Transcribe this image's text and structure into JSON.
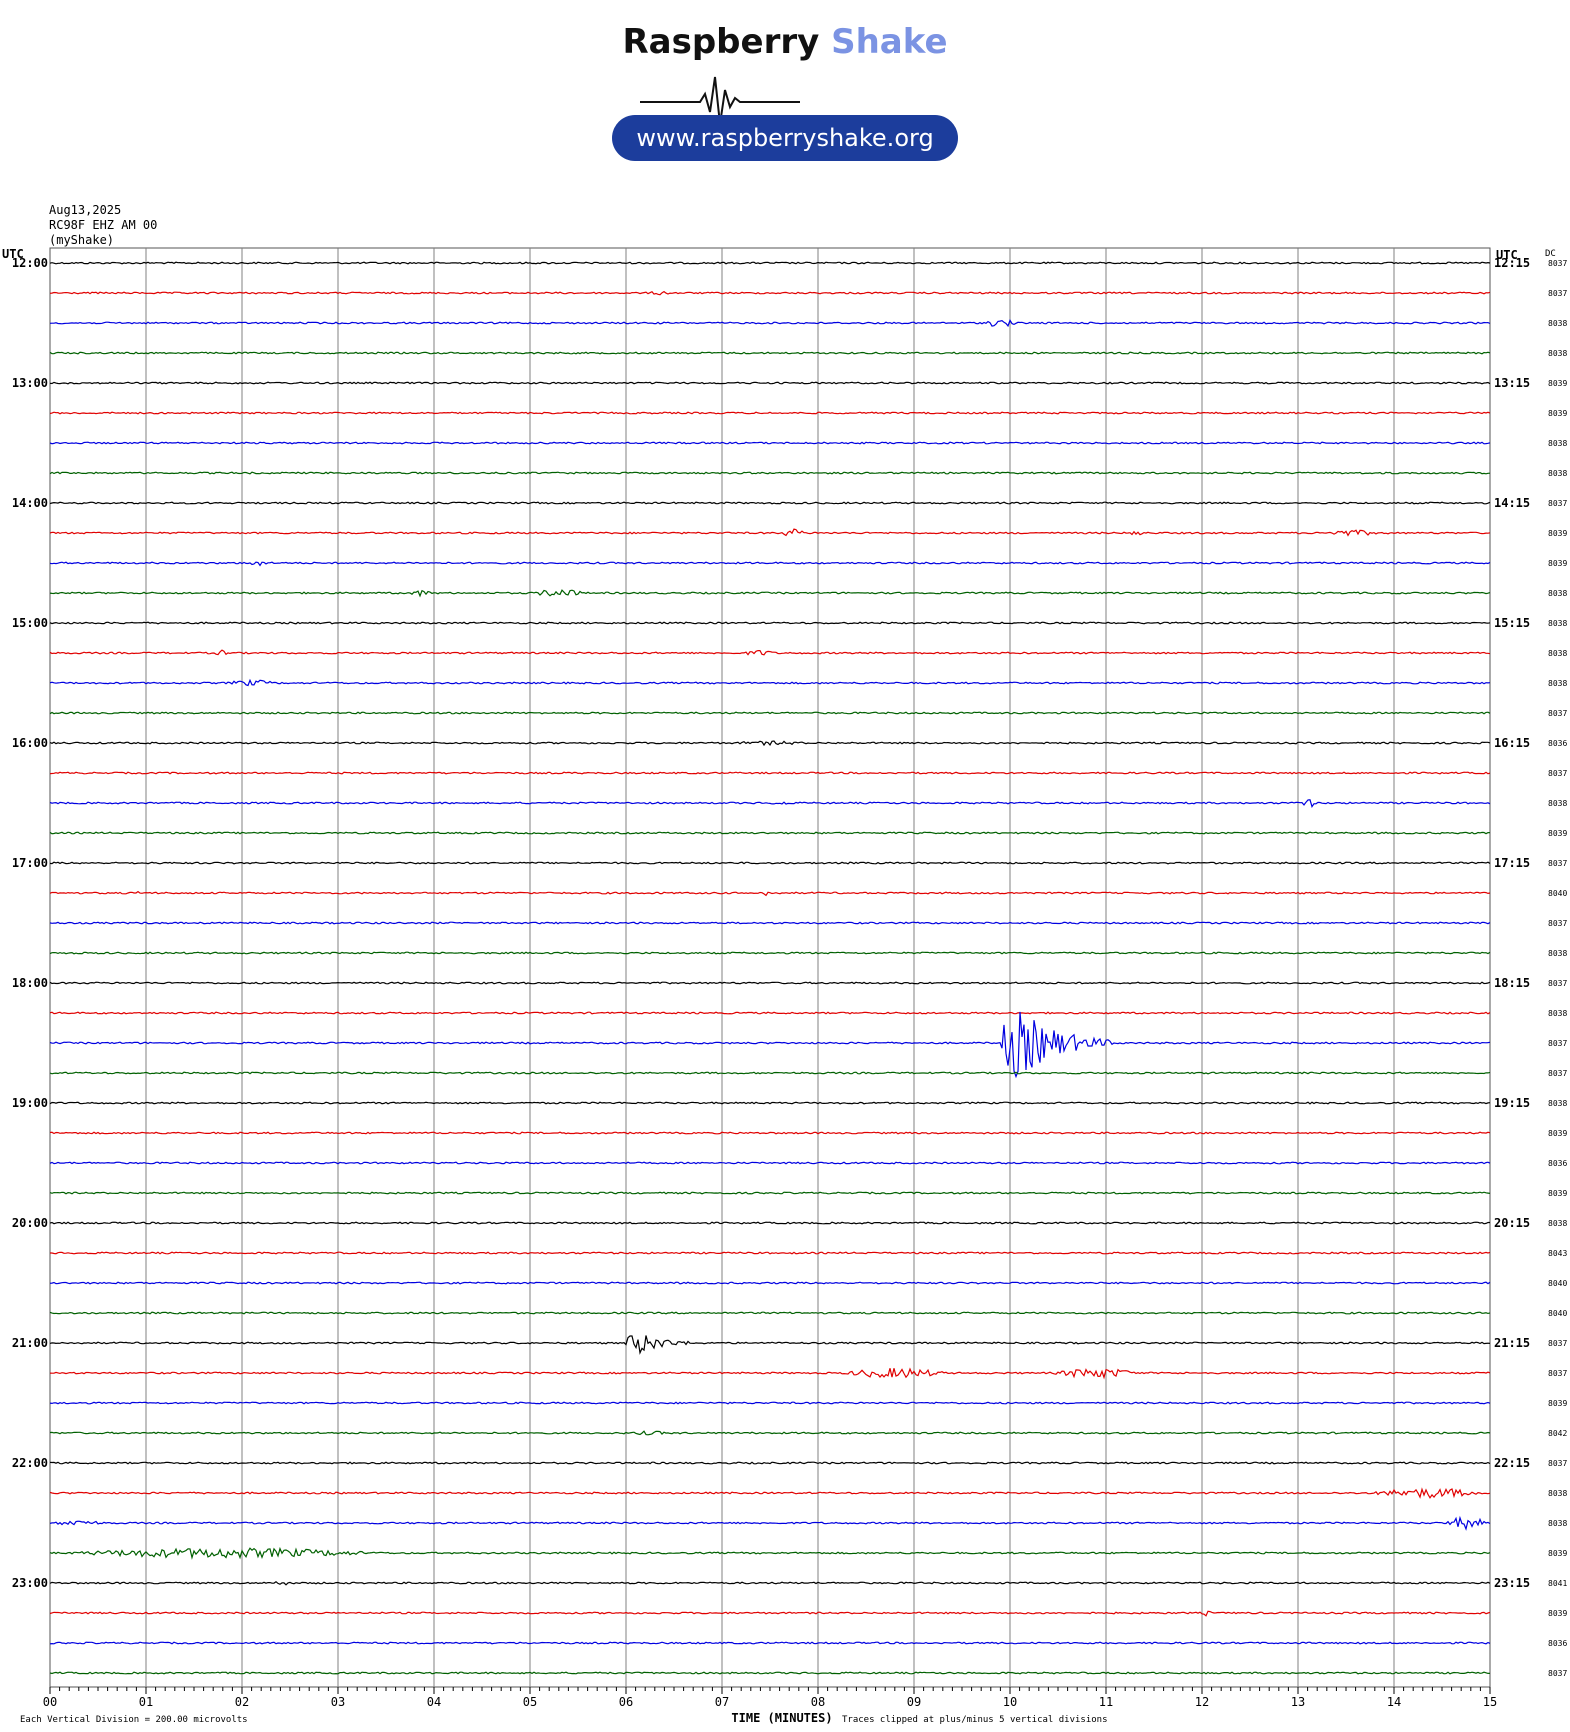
{
  "logo": {
    "brand_dark": "Raspberry",
    "brand_light": "Shake",
    "url": "www.raspberryshake.org"
  },
  "header": {
    "date": "Aug13,2025",
    "station": "RC98F EHZ AM 00",
    "network": "(myShake)"
  },
  "colors": {
    "trace_cycle": [
      "#000000",
      "#e00000",
      "#0000e0",
      "#006000"
    ],
    "grid": "#808080",
    "brand_accent": "#1c3d9c"
  },
  "chart_data": {
    "type": "line",
    "title": "",
    "left_axis_title": "UTC",
    "right_axis_title": "UTC",
    "dc_title": "DC",
    "xlabel": "TIME (MINUTES)",
    "xlim": [
      0,
      15
    ],
    "x_ticks": [
      "00",
      "01",
      "02",
      "03",
      "04",
      "05",
      "06",
      "07",
      "08",
      "09",
      "10",
      "11",
      "12",
      "13",
      "14",
      "15"
    ],
    "footer_left": "Each Vertical Division =  200.00 microvolts",
    "footer_right": "Traces clipped at plus/minus 5 vertical divisions",
    "left_hour_labels": [
      "12:00",
      "13:00",
      "14:00",
      "15:00",
      "16:00",
      "17:00",
      "18:00",
      "19:00",
      "20:00",
      "21:00",
      "22:00",
      "23:00"
    ],
    "right_hour_labels": [
      "12:15",
      "13:15",
      "14:15",
      "15:15",
      "16:15",
      "17:15",
      "18:15",
      "19:15",
      "20:15",
      "21:15",
      "22:15",
      "23:15"
    ],
    "dc_offsets": [
      "8037",
      "8037",
      "8038",
      "8038",
      "8039",
      "8039",
      "8038",
      "8038",
      "8037",
      "8039",
      "8039",
      "8038",
      "8038",
      "8038",
      "8038",
      "8037",
      "8036",
      "8037",
      "8038",
      "8039",
      "8037",
      "8040",
      "8037",
      "8038",
      "8037",
      "8038",
      "8037",
      "8037",
      "8038",
      "8039",
      "8036",
      "8039",
      "8038",
      "8043",
      "8040",
      "8040",
      "8037",
      "8037",
      "8039",
      "8042",
      "8037",
      "8038",
      "8038",
      "8039",
      "8041",
      "8039",
      "8036",
      "8037"
    ],
    "events": [
      {
        "row": 1,
        "minute": 6.2,
        "duration": 0.3,
        "amplitude": 2
      },
      {
        "row": 2,
        "minute": 9.7,
        "duration": 0.4,
        "amplitude": 4
      },
      {
        "row": 9,
        "minute": 7.6,
        "duration": 0.3,
        "amplitude": 4
      },
      {
        "row": 9,
        "minute": 11.2,
        "duration": 0.2,
        "amplitude": 3
      },
      {
        "row": 9,
        "minute": 13.2,
        "duration": 0.7,
        "amplitude": 3
      },
      {
        "row": 10,
        "minute": 2.0,
        "duration": 0.3,
        "amplitude": 3
      },
      {
        "row": 11,
        "minute": 3.7,
        "duration": 0.3,
        "amplitude": 3
      },
      {
        "row": 11,
        "minute": 5.0,
        "duration": 0.6,
        "amplitude": 4
      },
      {
        "row": 13,
        "minute": 1.7,
        "duration": 0.2,
        "amplitude": 3
      },
      {
        "row": 13,
        "minute": 7.2,
        "duration": 0.4,
        "amplitude": 3
      },
      {
        "row": 14,
        "minute": 1.8,
        "duration": 0.6,
        "amplitude": 3
      },
      {
        "row": 16,
        "minute": 7.0,
        "duration": 1.0,
        "amplitude": 2
      },
      {
        "row": 18,
        "minute": 7.5,
        "duration": 0.2,
        "amplitude": 3
      },
      {
        "row": 18,
        "minute": 13.0,
        "duration": 0.2,
        "amplitude": 5
      },
      {
        "row": 21,
        "minute": 0.9,
        "duration": 0.1,
        "amplitude": 4
      },
      {
        "row": 21,
        "minute": 7.4,
        "duration": 0.1,
        "amplitude": 4
      },
      {
        "row": 26,
        "minute": 9.9,
        "duration": 1.2,
        "amplitude": 36
      },
      {
        "row": 36,
        "minute": 6.0,
        "duration": 0.8,
        "amplitude": 12
      },
      {
        "row": 37,
        "minute": 8.2,
        "duration": 1.2,
        "amplitude": 5
      },
      {
        "row": 37,
        "minute": 10.4,
        "duration": 1.0,
        "amplitude": 5
      },
      {
        "row": 39,
        "minute": 6.0,
        "duration": 0.5,
        "amplitude": 2
      },
      {
        "row": 41,
        "minute": 13.7,
        "duration": 1.3,
        "amplitude": 5
      },
      {
        "row": 42,
        "minute": 0.0,
        "duration": 0.6,
        "amplitude": 3
      },
      {
        "row": 42,
        "minute": 14.5,
        "duration": 0.5,
        "amplitude": 6
      },
      {
        "row": 43,
        "minute": 0.0,
        "duration": 3.6,
        "amplitude": 5
      },
      {
        "row": 44,
        "minute": 2.3,
        "duration": 0.2,
        "amplitude": 3
      },
      {
        "row": 45,
        "minute": 12.0,
        "duration": 0.1,
        "amplitude": 3
      }
    ]
  }
}
